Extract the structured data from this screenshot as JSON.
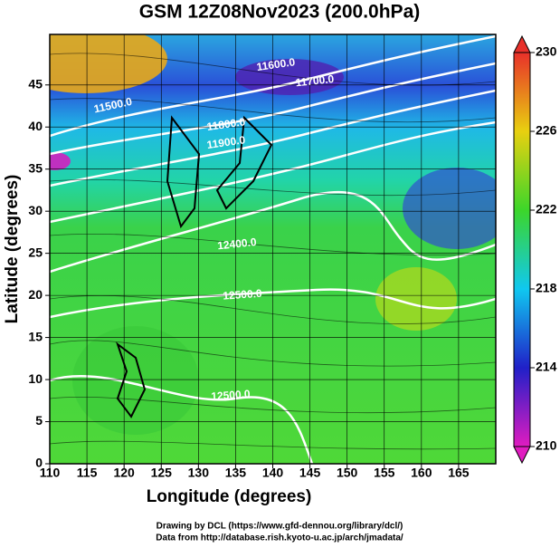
{
  "title": "GSM 12Z08Nov2023 (200.0hPa)",
  "x_axis": {
    "label": "Longitude (degrees)",
    "lim": [
      110,
      170
    ],
    "ticks": [
      110,
      115,
      120,
      125,
      130,
      135,
      140,
      145,
      150,
      155,
      160,
      165
    ]
  },
  "y_axis": {
    "label": "Latitude  (degrees)",
    "lim": [
      0,
      51
    ],
    "ticks": [
      0,
      5,
      10,
      15,
      20,
      25,
      30,
      35,
      40,
      45
    ]
  },
  "colorbar": {
    "lim": [
      210,
      230
    ],
    "ticks": [
      210,
      214,
      218,
      222,
      226,
      230
    ]
  },
  "contour_labels": [
    "11500.0",
    "11600.0",
    "11700.0",
    "11800.0",
    "11900.0",
    "12400.0",
    "12500.0",
    "12500.0"
  ],
  "credits": [
    "Drawing by DCL (https://www.gfd-dennou.org/library/dcl/)",
    "Data from http://database.rish.kyoto-u.ac.jp/arch/jmadata/"
  ]
}
